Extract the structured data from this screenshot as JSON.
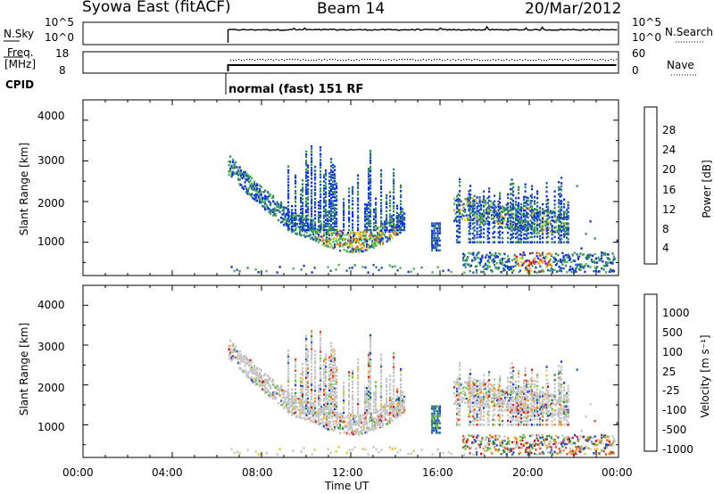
{
  "header": {
    "station": "Syowa East (fitACF)",
    "beam": "Beam 14",
    "date": "20/Mar/2012"
  },
  "status": {
    "nsky_label": "N.Sky",
    "nsky_ticks": [
      "10^5",
      "10^0"
    ],
    "nsearch_label": "N.Search",
    "freq_label_1": "Freq.",
    "freq_label_2": "[MHz]",
    "freq_ticks": [
      "18",
      "8"
    ],
    "nave_label": "Nave",
    "nave_ticks": [
      "60",
      "0"
    ],
    "cpid_label": "CPID",
    "cpid_value": "normal (fast) 151 RF"
  },
  "colors": {
    "power": [
      "#0a2cf0",
      "#1f55b0",
      "#2f8a5a",
      "#49b24a",
      "#8ed63a",
      "#f2d01c",
      "#f59a1a",
      "#f25a14",
      "#e81414"
    ],
    "velocity": [
      "#1a3fd0",
      "#2a62b8",
      "#2a8c4a",
      "#6cc43a",
      "#c4c4c4",
      "#c4c4c4",
      "#f0c020",
      "#f08a1a",
      "#f04014",
      "#e01010"
    ]
  },
  "chart_data": [
    {
      "type": "heatmap",
      "title": "Power",
      "xlabel": "",
      "ylabel": "Slant Range [km]",
      "xlim": [
        0,
        24
      ],
      "x_ticks": [
        "00:00",
        "04:00",
        "08:00",
        "12:00",
        "16:00",
        "20:00",
        "00:00"
      ],
      "ylim": [
        180,
        4500
      ],
      "y_ticks": [
        1000,
        2000,
        3000,
        4000
      ],
      "colorbar": {
        "label": "Power [dB]",
        "ticks": [
          "28",
          "24",
          "20",
          "16",
          "12",
          "8",
          "4"
        ],
        "range": [
          0,
          30
        ]
      },
      "series": [
        {
          "x": [
            6.5,
            7.2,
            8.0,
            8.7,
            9.3,
            10.5,
            11.0,
            11.8,
            12.4,
            13.0,
            13.6,
            14.2
          ],
          "range_km": [
            2900,
            2500,
            2100,
            1800,
            1500,
            1250,
            1100,
            1000,
            1000,
            1100,
            1250,
            1450
          ]
        },
        {
          "x": [
            16.6,
            17.4,
            18.3,
            19.2,
            20.0,
            21.0,
            21.7
          ],
          "range_km": [
            1800,
            1800,
            1700,
            1600,
            1550,
            1500,
            1450
          ]
        }
      ]
    },
    {
      "type": "heatmap",
      "title": "Velocity",
      "xlabel": "Time UT",
      "ylabel": "Slant Range [km]",
      "xlim": [
        0,
        24
      ],
      "x_ticks": [
        "00:00",
        "04:00",
        "08:00",
        "12:00",
        "16:00",
        "20:00",
        "00:00"
      ],
      "ylim": [
        180,
        4500
      ],
      "y_ticks": [
        1000,
        2000,
        3000,
        4000
      ],
      "colorbar": {
        "label": "Velocity [m s⁻¹]",
        "ticks": [
          "1000",
          "500",
          "100",
          "25",
          "-25",
          "-100",
          "-500",
          "-1000"
        ]
      }
    }
  ]
}
